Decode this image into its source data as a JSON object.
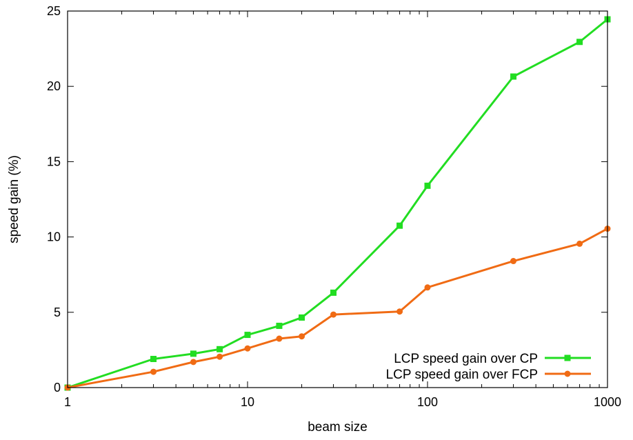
{
  "chart_data": {
    "type": "line",
    "xscale": "log",
    "xlabel": "beam size",
    "ylabel": "speed gain (%)",
    "xlim": [
      1,
      1000
    ],
    "ylim": [
      0,
      25
    ],
    "x_ticks": [
      1,
      10,
      100,
      1000
    ],
    "x_tick_labels": [
      "1",
      "10",
      "100",
      "1000"
    ],
    "y_ticks": [
      0,
      5,
      10,
      15,
      20,
      25
    ],
    "y_tick_labels": [
      "0",
      "5",
      "10",
      "15",
      "20",
      "25"
    ],
    "grid": false,
    "legend_position": "bottom-right",
    "series": [
      {
        "name": "LCP speed gain over CP",
        "color": "#22dd22",
        "marker": "square",
        "x": [
          1,
          3,
          5,
          7,
          10,
          15,
          20,
          30,
          70,
          100,
          300,
          700,
          1000
        ],
        "y": [
          0,
          1.9,
          2.25,
          2.55,
          3.5,
          4.1,
          4.65,
          6.3,
          10.75,
          13.4,
          20.65,
          22.95,
          24.45
        ]
      },
      {
        "name": "LCP speed gain over FCP",
        "color": "#f06b14",
        "marker": "circle",
        "x": [
          1,
          3,
          5,
          7,
          10,
          15,
          20,
          30,
          70,
          100,
          300,
          700,
          1000
        ],
        "y": [
          0,
          1.05,
          1.7,
          2.05,
          2.6,
          3.25,
          3.4,
          4.85,
          5.05,
          6.65,
          8.4,
          9.55,
          10.55
        ]
      }
    ]
  }
}
